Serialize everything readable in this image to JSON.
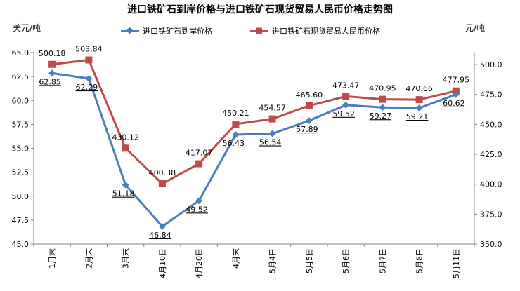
{
  "chart_data": {
    "type": "line",
    "title": "进口铁矿石到岸价格与进口铁矿石现货贸易人民币价格走势图",
    "ylabel_left": "美元/吨",
    "ylabel_right": "元/吨",
    "categories": [
      "1月末",
      "2月末",
      "3月末",
      "4月10日",
      "4月20日",
      "4月末",
      "5月4日",
      "5月5日",
      "5月6日",
      "5月7日",
      "5月8日",
      "5月11日"
    ],
    "ylim_left": [
      45.0,
      65.0
    ],
    "yticks_left": [
      "45.0",
      "47.5",
      "50.0",
      "52.5",
      "55.0",
      "57.5",
      "60.0",
      "62.5",
      "65.0"
    ],
    "ylim_right": [
      350.0,
      510.0
    ],
    "yticks_right": [
      "350.0",
      "375.0",
      "400.0",
      "425.0",
      "450.0",
      "475.0",
      "500.0"
    ],
    "grid": false,
    "legend_position": "top",
    "series": [
      {
        "name": "进口铁矿石到岸价格",
        "axis": "left",
        "color": "#4a7ebb",
        "marker": "diamond",
        "values": [
          62.85,
          62.29,
          51.18,
          46.84,
          49.52,
          56.43,
          56.54,
          57.89,
          59.52,
          59.27,
          59.21,
          60.62
        ],
        "labels": [
          "62.85",
          "62.29",
          "51.18",
          "46.84",
          "49.52",
          "56.43",
          "56.54",
          "57.89",
          "59.52",
          "59.27",
          "59.21",
          "60.62"
        ]
      },
      {
        "name": "进口铁矿石现货贸易人民币价格",
        "axis": "right",
        "color": "#be4b48",
        "marker": "square",
        "values": [
          500.18,
          503.84,
          430.12,
          400.38,
          417.07,
          450.21,
          454.57,
          465.6,
          473.47,
          470.95,
          470.66,
          477.95
        ],
        "labels": [
          "500.18",
          "503.84",
          "430.12",
          "400.38",
          "417.07",
          "450.21",
          "454.57",
          "465.60",
          "473.47",
          "470.95",
          "470.66",
          "477.95"
        ]
      }
    ]
  }
}
